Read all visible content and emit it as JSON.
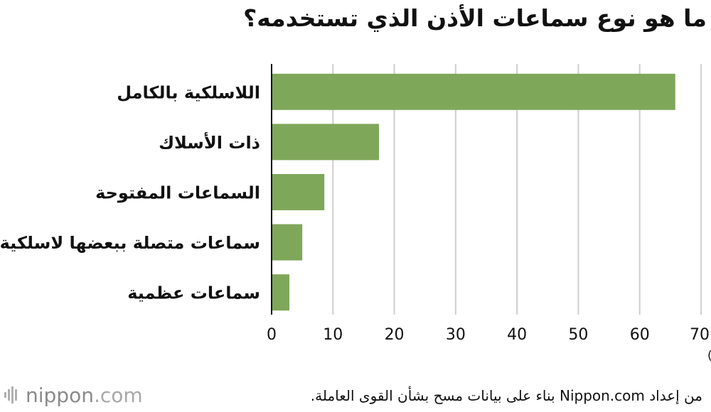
{
  "title": "ما هو نوع سماعات الأذن الذي تستخدمه؟",
  "chart_data": {
    "type": "bar",
    "orientation": "horizontal",
    "categories": [
      "اللاسلكية بالكامل",
      "ذات الأسلاك",
      "السماعات المفتوحة",
      "سماعات متصلة ببعضها لاسلكية",
      "سماعات عظمية"
    ],
    "values": [
      65.8,
      17.5,
      8.6,
      5.0,
      2.9
    ],
    "x_ticks": [
      0,
      10,
      20,
      30,
      40,
      50,
      60,
      70
    ],
    "xlim": [
      0,
      70
    ],
    "unit": "(٪)",
    "grid": true,
    "bar_color": "#7fa75a"
  },
  "source": "من إعداد Nippon.com بناء على بيانات مسح بشأن القوى العاملة.",
  "logo": {
    "brand": "nippon",
    "suffix": ".com"
  }
}
